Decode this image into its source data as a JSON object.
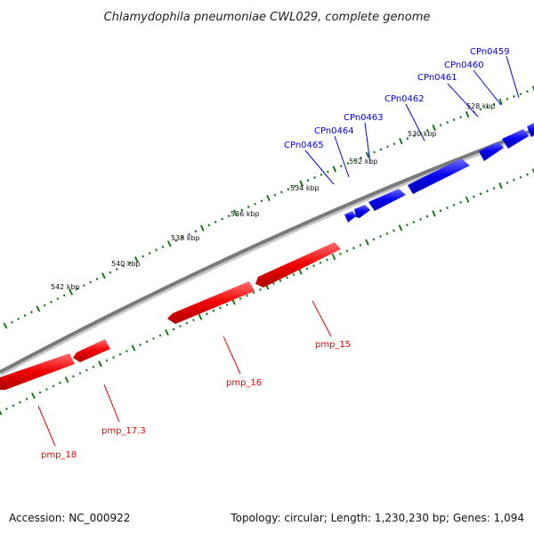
{
  "title": "Chlamydophila pneumoniae CWL029, complete genome",
  "footer": {
    "accession": "Accession: NC_000922",
    "summary": "Topology: circular; Length: 1,230,230 bp; Genes: 1,094"
  },
  "colors": {
    "forward_strand": "#0000ee",
    "reverse_strand": "#ee0000",
    "backbone": "#808080",
    "tick_marks": "#1a7a1a"
  },
  "tick_labels": [
    "528 kbp",
    "530 kbp",
    "532 kbp",
    "534 kbp",
    "536 kbp",
    "538 kbp",
    "540 kbp",
    "542 kbp"
  ],
  "forward_genes": [
    "CPn0459",
    "CPn0460",
    "CPn0461",
    "CPn0462",
    "CPn0463",
    "CPn0464",
    "CPn0465"
  ],
  "reverse_genes": [
    "pmp_15",
    "pmp_16",
    "pmp_17.3",
    "pmp_18"
  ]
}
